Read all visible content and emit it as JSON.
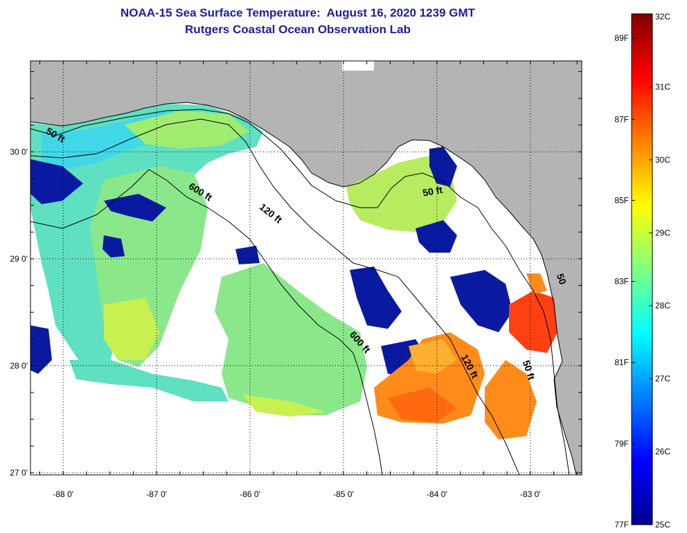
{
  "title": {
    "line1": "NOAA-15 Sea Surface Temperature:  August 16, 2020 1239 GMT",
    "line2": "Rutgers Coastal Ocean Observation Lab"
  },
  "map": {
    "type": "sea surface temperature map",
    "lon_range": [
      -88.35,
      -82.45
    ],
    "lat_range": [
      26.98,
      30.85
    ],
    "lon_ticks": [
      {
        "value": -88,
        "label": "-88 0'"
      },
      {
        "value": -87,
        "label": "-87 0'"
      },
      {
        "value": -86,
        "label": "-86 0'"
      },
      {
        "value": -85,
        "label": "-85 0'"
      },
      {
        "value": -84,
        "label": "-84 0'"
      },
      {
        "value": -83,
        "label": "-83 0'"
      }
    ],
    "lat_ticks": [
      {
        "value": 30,
        "label": "30 0'"
      },
      {
        "value": 29,
        "label": "29 0'"
      },
      {
        "value": 28,
        "label": "28 0'"
      },
      {
        "value": 27,
        "label": "27 0'"
      }
    ],
    "gridlines": "dotted",
    "land_color": "#b4b4b4",
    "no_data_color": "#ffffff",
    "contour_labels": [
      {
        "text": "50 ft",
        "lon": -88.1,
        "lat": 30.13,
        "angle": 30
      },
      {
        "text": "600 ft",
        "lon": -86.55,
        "lat": 29.6,
        "angle": 32
      },
      {
        "text": "120 ft",
        "lon": -85.8,
        "lat": 29.4,
        "angle": 38
      },
      {
        "text": "50 ft",
        "lon": -84.04,
        "lat": 29.6,
        "angle": -10
      },
      {
        "text": "600 ft",
        "lon": -84.85,
        "lat": 28.2,
        "angle": 48
      },
      {
        "text": "120 ft",
        "lon": -83.68,
        "lat": 27.98,
        "angle": 62
      },
      {
        "text": "50 ft",
        "lon": -83.05,
        "lat": 27.95,
        "angle": 72
      },
      {
        "text": "50",
        "lon": -82.7,
        "lat": 28.8,
        "angle": 70
      }
    ]
  },
  "colorbar": {
    "min_c": 25,
    "max_c": 32,
    "celsius_labels": [
      "32C",
      "31C",
      "30C",
      "29C",
      "28C",
      "27C",
      "26C",
      "25C"
    ],
    "fahrenheit_labels": [
      "89F",
      "87F",
      "85F",
      "83F",
      "81F",
      "79F",
      "77F"
    ],
    "fahrenheit_values": [
      89,
      87,
      85,
      83,
      81,
      79,
      77
    ],
    "colors": [
      "#00008f",
      "#0000ff",
      "#0080ff",
      "#00ffff",
      "#80ff80",
      "#ffff00",
      "#ff8000",
      "#ff0000",
      "#800000"
    ]
  }
}
